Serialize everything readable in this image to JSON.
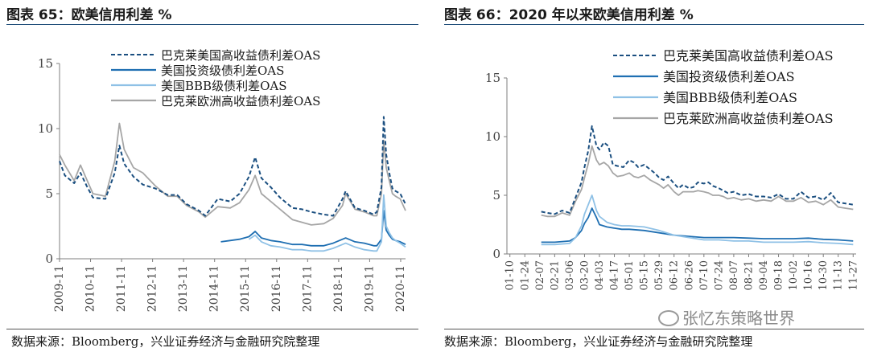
{
  "left": {
    "title": "图表 65：欧美信用利差  %",
    "source": "数据来源：Bloomberg，兴业证券经济与金融研究院整理"
  },
  "right": {
    "title": "图表 66：2020 年以来欧美信用利差  %",
    "source": "数据来源：Bloomberg，兴业证券经济与金融研究院整理"
  },
  "watermark": "张忆东策略世界",
  "colors": {
    "dark": "#1b4f80",
    "mid": "#1f6fb2",
    "light": "#8fc1e6",
    "gray": "#a6a6a6",
    "rule": "#1f4e79"
  },
  "chart_data": [
    {
      "type": "line",
      "xlim": [
        2009.83,
        2020.92
      ],
      "ylim": [
        0,
        15
      ],
      "yticks": [
        0,
        5,
        10,
        15
      ],
      "xticks": [
        "2009-11",
        "2010-11",
        "2011-11",
        "2012-11",
        "2013-11",
        "2014-11",
        "2015-11",
        "2016-11",
        "2017-11",
        "2018-11",
        "2019-11",
        "2020-11"
      ],
      "legend_position": "top-center",
      "series": [
        {
          "name": "巴克莱美国高收益债利差OAS",
          "style": "dashed",
          "color": "#1b4f80",
          "x": [
            2009.83,
            2010.0,
            2010.3,
            2010.5,
            2010.7,
            2010.9,
            2011.3,
            2011.6,
            2011.75,
            2011.9,
            2012.2,
            2012.5,
            2012.9,
            2013.3,
            2013.6,
            2013.9,
            2014.3,
            2014.5,
            2014.9,
            2015.3,
            2015.6,
            2015.9,
            2016.1,
            2016.3,
            2016.6,
            2016.9,
            2017.3,
            2017.6,
            2017.9,
            2018.3,
            2018.6,
            2018.9,
            2019.0,
            2019.3,
            2019.6,
            2019.9,
            2020.0,
            2020.15,
            2020.22,
            2020.3,
            2020.4,
            2020.5,
            2020.6,
            2020.75,
            2020.92
          ],
          "y": [
            7.5,
            6.4,
            5.8,
            6.6,
            5.6,
            4.7,
            4.6,
            6.6,
            8.7,
            7.3,
            6.3,
            5.7,
            5.4,
            4.9,
            4.9,
            4.2,
            3.7,
            3.3,
            4.6,
            4.4,
            5.0,
            6.3,
            7.8,
            6.2,
            5.5,
            4.7,
            3.9,
            3.8,
            3.6,
            3.4,
            3.3,
            4.6,
            5.2,
            3.9,
            3.7,
            3.4,
            3.6,
            5.5,
            10.9,
            8.0,
            6.6,
            5.4,
            5.2,
            5.0,
            4.2
          ]
        },
        {
          "name": "美国投资级债利差OAS",
          "style": "solid",
          "color": "#1f6fb2",
          "x": [
            2015.0,
            2015.3,
            2015.6,
            2015.9,
            2016.1,
            2016.3,
            2016.6,
            2016.9,
            2017.3,
            2017.6,
            2017.9,
            2018.3,
            2018.6,
            2018.9,
            2019.0,
            2019.3,
            2019.6,
            2019.9,
            2020.0,
            2020.15,
            2020.22,
            2020.3,
            2020.4,
            2020.5,
            2020.6,
            2020.75,
            2020.92
          ],
          "y": [
            1.3,
            1.4,
            1.5,
            1.7,
            2.1,
            1.6,
            1.4,
            1.3,
            1.1,
            1.1,
            1.0,
            1.0,
            1.2,
            1.5,
            1.6,
            1.3,
            1.2,
            1.0,
            1.0,
            1.5,
            3.7,
            2.2,
            1.8,
            1.5,
            1.4,
            1.3,
            1.1
          ]
        },
        {
          "name": "美国BBB级债利差OAS",
          "style": "solid",
          "color": "#8fc1e6",
          "x": [
            2015.9,
            2016.1,
            2016.3,
            2016.6,
            2016.9,
            2017.3,
            2017.6,
            2017.9,
            2018.3,
            2018.6,
            2018.9,
            2019.0,
            2019.3,
            2019.6,
            2019.9,
            2020.0,
            2020.15,
            2020.22,
            2020.3,
            2020.4,
            2020.5,
            2020.6,
            2020.75,
            2020.92
          ],
          "y": [
            1.5,
            1.8,
            1.3,
            1.0,
            0.9,
            0.7,
            0.7,
            0.6,
            0.6,
            0.8,
            1.1,
            1.2,
            0.9,
            0.7,
            0.6,
            0.6,
            1.3,
            4.9,
            2.5,
            2.0,
            1.6,
            1.4,
            1.2,
            0.9
          ]
        },
        {
          "name": "巴克莱欧洲高收益债利差OAS",
          "style": "solid",
          "color": "#a6a6a6",
          "x": [
            2009.83,
            2010.0,
            2010.3,
            2010.5,
            2010.7,
            2010.9,
            2011.3,
            2011.6,
            2011.75,
            2011.9,
            2012.2,
            2012.5,
            2012.9,
            2013.3,
            2013.6,
            2013.9,
            2014.3,
            2014.5,
            2014.9,
            2015.3,
            2015.6,
            2015.9,
            2016.1,
            2016.3,
            2016.6,
            2016.9,
            2017.3,
            2017.6,
            2017.9,
            2018.3,
            2018.6,
            2018.9,
            2019.0,
            2019.3,
            2019.6,
            2019.9,
            2020.0,
            2020.15,
            2020.22,
            2020.3,
            2020.4,
            2020.5,
            2020.6,
            2020.75,
            2020.92
          ],
          "y": [
            8.0,
            7.2,
            6.0,
            7.2,
            6.1,
            5.0,
            4.8,
            7.5,
            10.4,
            8.4,
            7.0,
            6.6,
            5.6,
            4.8,
            4.8,
            4.1,
            3.6,
            3.2,
            4.0,
            3.9,
            4.3,
            5.3,
            6.4,
            5.0,
            4.4,
            3.8,
            3.0,
            2.8,
            2.6,
            2.7,
            3.1,
            4.1,
            5.0,
            3.8,
            3.6,
            3.3,
            3.3,
            5.0,
            9.1,
            7.0,
            6.0,
            5.0,
            4.8,
            4.6,
            3.7
          ]
        }
      ]
    },
    {
      "type": "line",
      "ylim": [
        0,
        15
      ],
      "yticks": [
        0,
        5,
        10,
        15
      ],
      "categories": [
        "01-10",
        "01-24",
        "02-07",
        "02-21",
        "03-06",
        "03-20",
        "04-03",
        "04-17",
        "05-01",
        "05-15",
        "05-29",
        "06-12",
        "06-26",
        "07-10",
        "07-24",
        "08-07",
        "08-21",
        "09-04",
        "09-18",
        "10-02",
        "10-16",
        "10-30",
        "11-13",
        "11-27"
      ],
      "legend_position": "top-right",
      "series": [
        {
          "name": "巴克莱美国高收益债利差OAS",
          "style": "dashed",
          "color": "#1b4f80",
          "x": [
            2.1,
            2.5,
            3.0,
            3.5,
            4.0,
            4.4,
            4.8,
            5.0,
            5.25,
            5.5,
            5.8,
            6.0,
            6.3,
            6.6,
            6.9,
            7.2,
            7.6,
            8.0,
            8.3,
            8.6,
            9.0,
            9.4,
            9.7,
            10.0,
            10.3,
            10.6,
            11.0,
            11.3,
            11.6,
            12.0,
            12.3,
            12.6,
            13.0,
            13.3,
            13.6,
            14.0,
            14.3,
            14.6,
            15.0,
            15.5,
            16.0,
            16.5,
            17.0,
            17.5,
            18.0,
            18.5,
            19.0,
            19.5,
            20.0,
            20.5,
            21.0,
            21.5,
            22.0,
            22.5,
            23.0
          ],
          "y": [
            3.6,
            3.5,
            3.4,
            3.7,
            3.5,
            4.8,
            6.1,
            7.4,
            8.8,
            10.9,
            9.2,
            8.9,
            9.5,
            9.2,
            7.6,
            7.5,
            7.4,
            8.0,
            7.8,
            7.4,
            7.6,
            7.2,
            6.9,
            6.5,
            6.3,
            6.6,
            6.0,
            5.6,
            5.9,
            5.6,
            5.7,
            6.1,
            6.0,
            6.1,
            5.8,
            5.6,
            5.4,
            5.2,
            5.3,
            5.0,
            5.1,
            4.9,
            4.9,
            4.8,
            5.1,
            4.7,
            4.7,
            5.3,
            4.8,
            4.9,
            4.6,
            5.2,
            4.4,
            4.3,
            4.2
          ]
        },
        {
          "name": "美国投资级债利差OAS",
          "style": "solid",
          "color": "#1f6fb2",
          "x": [
            2.1,
            3.0,
            4.0,
            4.4,
            4.8,
            5.0,
            5.25,
            5.5,
            5.8,
            6.0,
            6.5,
            7.0,
            7.5,
            8.0,
            9.0,
            10.0,
            11.0,
            12.0,
            13.0,
            14.0,
            15.0,
            16.0,
            17.0,
            18.0,
            19.0,
            20.0,
            21.0,
            22.0,
            23.0
          ],
          "y": [
            1.0,
            1.0,
            1.1,
            1.4,
            2.0,
            2.6,
            3.1,
            3.9,
            3.1,
            2.5,
            2.3,
            2.2,
            2.1,
            2.1,
            2.0,
            1.8,
            1.6,
            1.5,
            1.4,
            1.4,
            1.4,
            1.35,
            1.3,
            1.3,
            1.3,
            1.35,
            1.25,
            1.2,
            1.1
          ]
        },
        {
          "name": "美国BBB级债利差OAS",
          "style": "solid",
          "color": "#8fc1e6",
          "x": [
            2.1,
            3.0,
            4.0,
            4.4,
            4.8,
            5.0,
            5.25,
            5.5,
            5.8,
            6.0,
            6.5,
            7.0,
            7.5,
            8.0,
            9.0,
            10.0,
            11.0,
            12.0,
            13.0,
            14.0,
            15.0,
            16.0,
            17.0,
            18.0,
            19.0,
            20.0,
            21.0,
            22.0,
            23.0
          ],
          "y": [
            0.8,
            0.8,
            0.9,
            1.4,
            2.4,
            3.4,
            4.2,
            5.0,
            3.7,
            3.2,
            2.7,
            2.5,
            2.4,
            2.4,
            2.3,
            2.0,
            1.6,
            1.4,
            1.2,
            1.2,
            1.1,
            1.1,
            1.0,
            1.0,
            1.0,
            1.05,
            0.95,
            0.9,
            0.8
          ]
        },
        {
          "name": "巴克莱欧洲高收益债利差OAS",
          "style": "solid",
          "color": "#a6a6a6",
          "x": [
            2.1,
            2.5,
            3.0,
            3.5,
            4.0,
            4.4,
            4.8,
            5.0,
            5.25,
            5.5,
            5.8,
            6.0,
            6.3,
            6.6,
            6.9,
            7.2,
            7.6,
            8.0,
            8.3,
            8.6,
            9.0,
            9.4,
            9.7,
            10.0,
            10.3,
            10.6,
            11.0,
            11.3,
            11.6,
            12.0,
            12.3,
            12.6,
            13.0,
            13.3,
            13.6,
            14.0,
            14.3,
            14.6,
            15.0,
            15.5,
            16.0,
            16.5,
            17.0,
            17.5,
            18.0,
            18.5,
            19.0,
            19.5,
            20.0,
            20.5,
            21.0,
            21.5,
            22.0,
            22.5,
            23.0
          ],
          "y": [
            3.3,
            3.2,
            3.2,
            3.5,
            3.3,
            4.5,
            5.5,
            6.5,
            7.7,
            9.2,
            8.0,
            7.6,
            7.8,
            7.5,
            6.9,
            6.6,
            6.7,
            6.9,
            6.6,
            6.5,
            6.7,
            6.3,
            6.1,
            5.9,
            5.6,
            5.9,
            5.3,
            5.0,
            5.3,
            5.3,
            5.3,
            5.4,
            5.3,
            5.2,
            5.0,
            5.0,
            4.9,
            4.7,
            4.8,
            4.6,
            4.7,
            4.5,
            4.6,
            4.5,
            4.9,
            4.5,
            4.5,
            4.8,
            4.4,
            4.5,
            4.2,
            4.6,
            4.0,
            3.9,
            3.8
          ]
        }
      ]
    }
  ]
}
